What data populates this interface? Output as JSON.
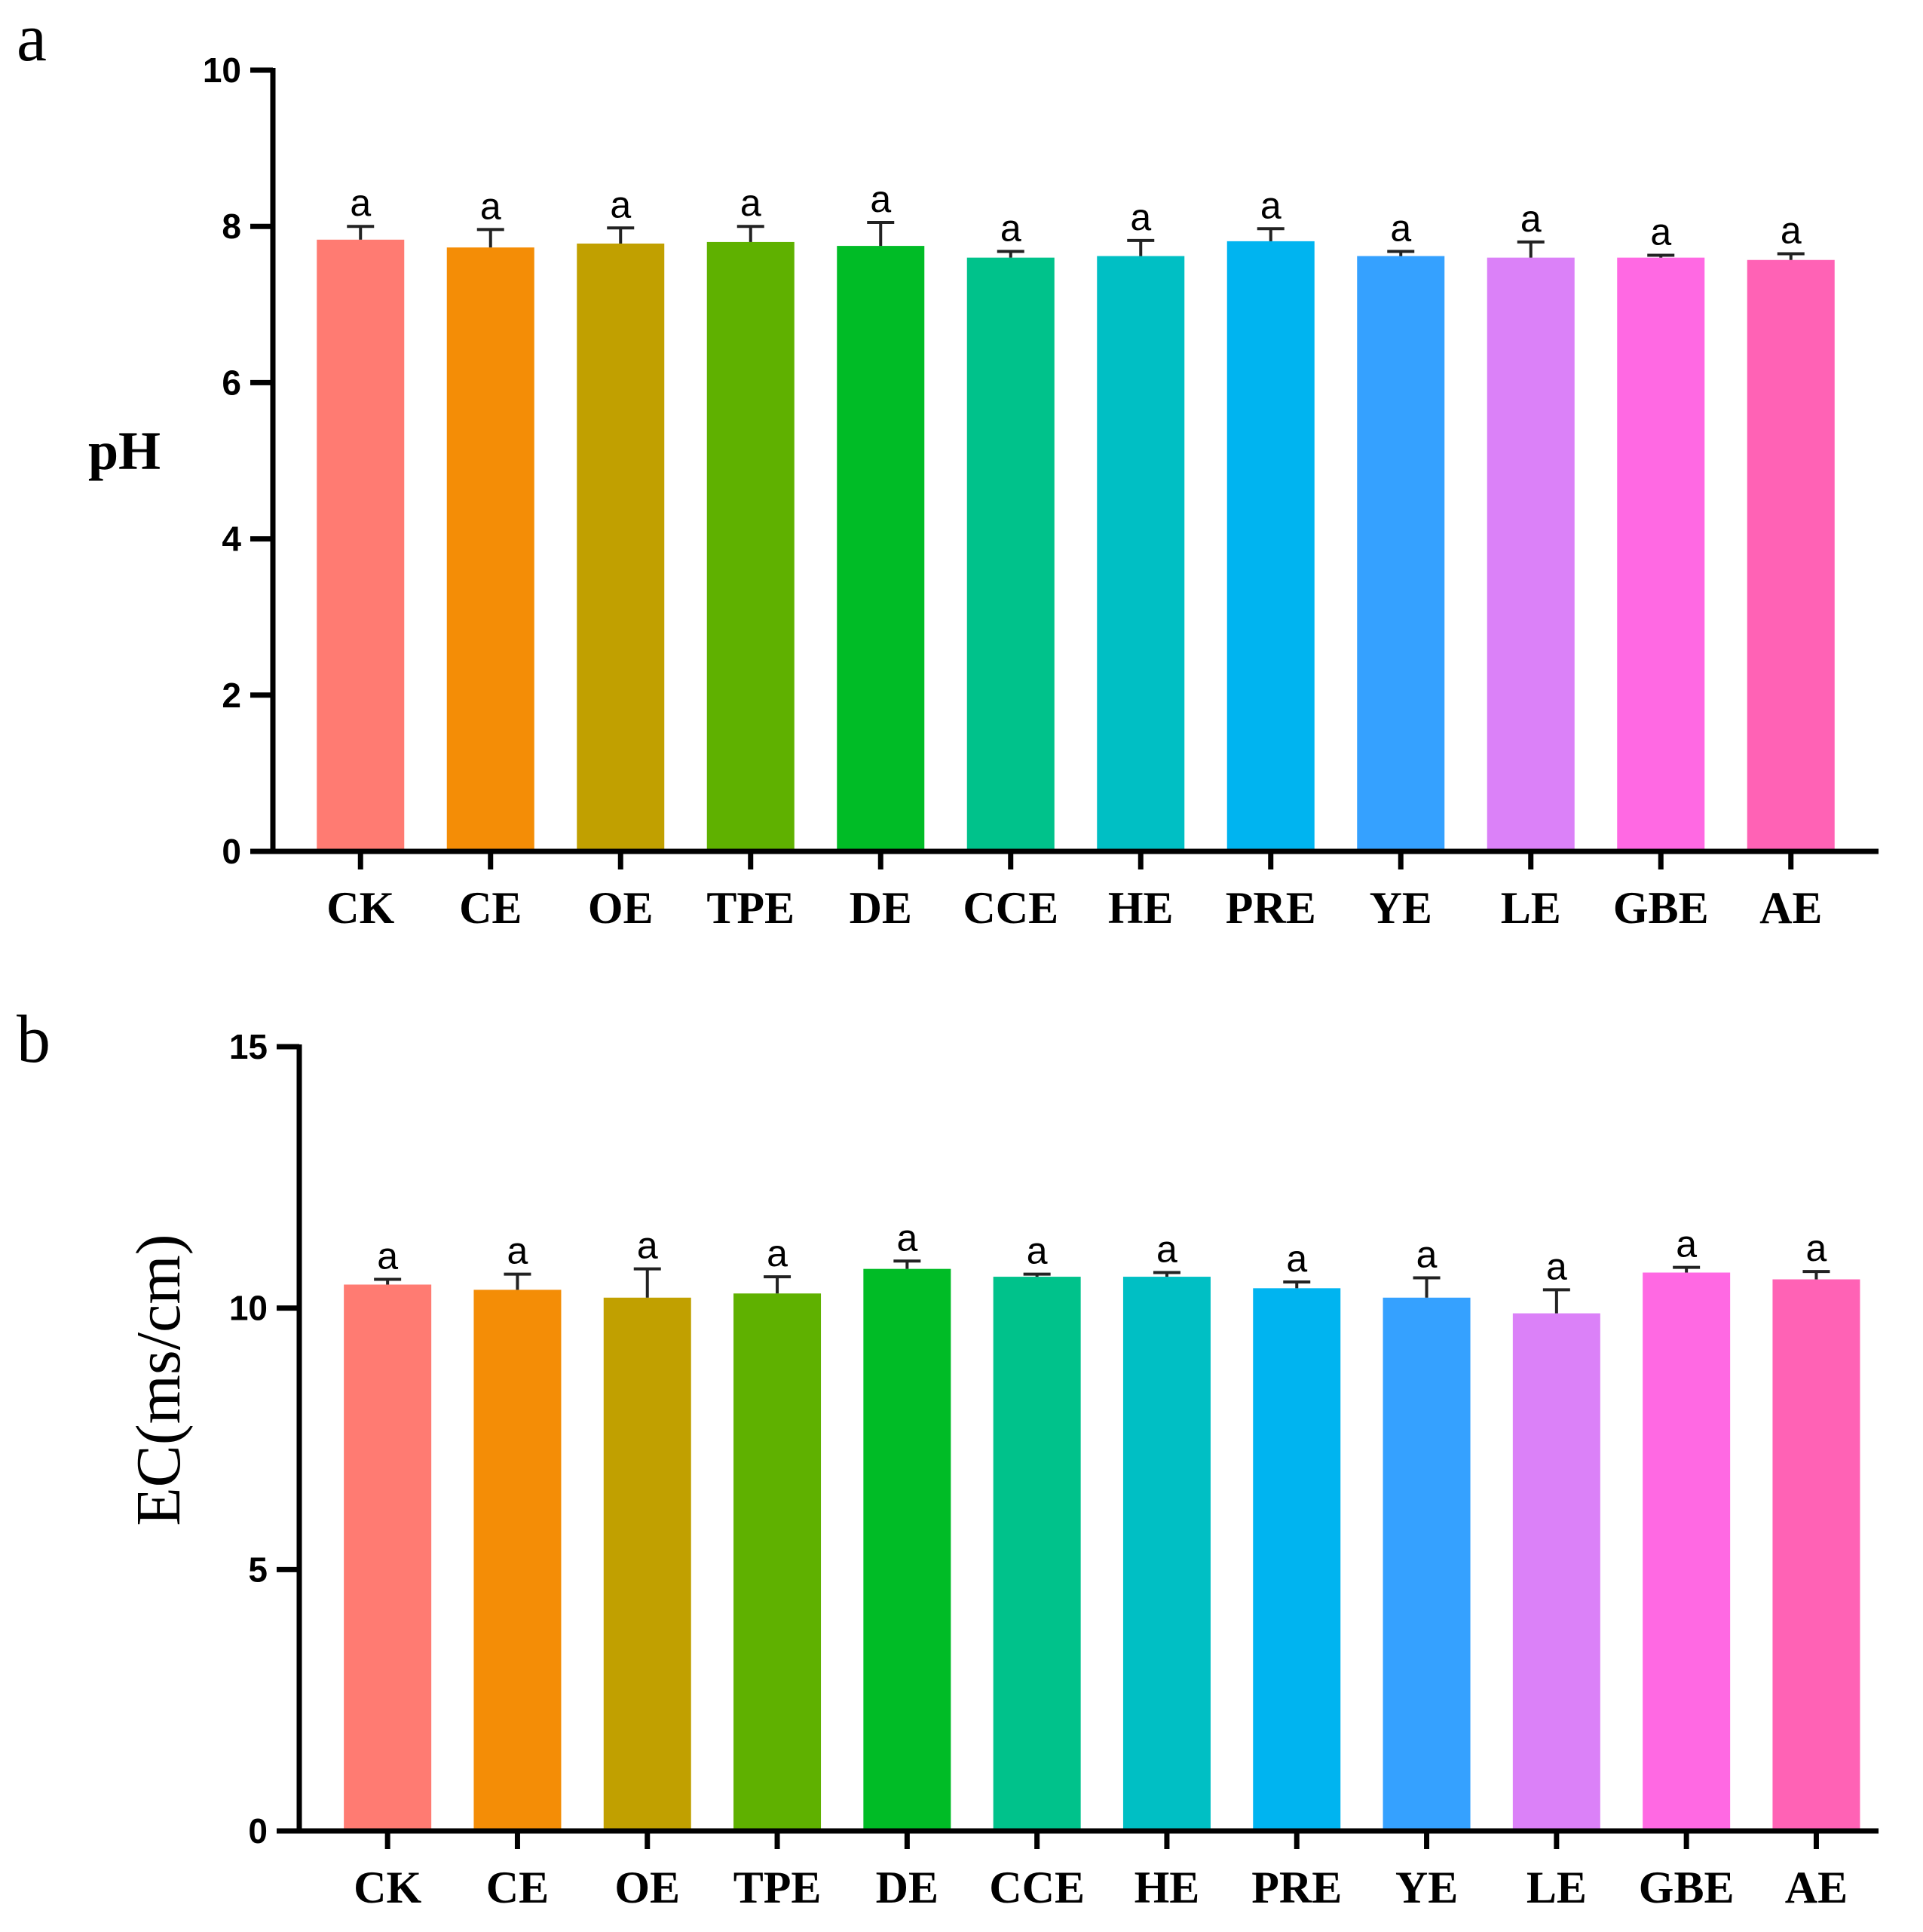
{
  "panels": {
    "a": {
      "label": "a"
    },
    "b": {
      "label": "b"
    }
  },
  "chart_data": [
    {
      "type": "bar",
      "panel": "a",
      "title": "",
      "xlabel": "",
      "ylabel": "pH",
      "ylim": [
        0,
        10
      ],
      "yticks": [
        "0",
        "2",
        "4",
        "6",
        "8",
        "10"
      ],
      "categories": [
        "CK",
        "CE",
        "OE",
        "TPE",
        "DE",
        "CCE",
        "HE",
        "PRE",
        "YE",
        "LE",
        "GBE",
        "AE"
      ],
      "values": [
        7.83,
        7.73,
        7.78,
        7.8,
        7.75,
        7.6,
        7.62,
        7.81,
        7.62,
        7.6,
        7.6,
        7.57
      ],
      "errors": [
        0.17,
        0.23,
        0.2,
        0.2,
        0.3,
        0.08,
        0.2,
        0.16,
        0.06,
        0.2,
        0.03,
        0.08
      ],
      "significance": [
        "a",
        "a",
        "a",
        "a",
        "a",
        "a",
        "a",
        "a",
        "a",
        "a",
        "a",
        "a"
      ],
      "colors": [
        "#FF7B72",
        "#F48D06",
        "#C1A000",
        "#5FB100",
        "#00BC26",
        "#00C28B",
        "#00BFC4",
        "#00B4F0",
        "#35A1FF",
        "#DB81F8",
        "#FF69E3",
        "#FF62B5"
      ],
      "grid": false
    },
    {
      "type": "bar",
      "panel": "b",
      "title": "",
      "xlabel": "",
      "ylabel": "EC(ms/cm)",
      "ylim": [
        0,
        15
      ],
      "yticks": [
        "0",
        "5",
        "10",
        "15"
      ],
      "categories": [
        "CK",
        "CE",
        "OE",
        "TPE",
        "DE",
        "CCE",
        "HE",
        "PRE",
        "YE",
        "LE",
        "GBE",
        "AE"
      ],
      "values": [
        10.45,
        10.35,
        10.2,
        10.28,
        10.75,
        10.6,
        10.6,
        10.38,
        10.2,
        9.9,
        10.68,
        10.55
      ],
      "errors": [
        0.1,
        0.3,
        0.55,
        0.32,
        0.15,
        0.05,
        0.08,
        0.12,
        0.38,
        0.45,
        0.1,
        0.15
      ],
      "significance": [
        "a",
        "a",
        "a",
        "a",
        "a",
        "a",
        "a",
        "a",
        "a",
        "a",
        "a",
        "a"
      ],
      "colors": [
        "#FF7B72",
        "#F48D06",
        "#C1A000",
        "#5FB100",
        "#00BC26",
        "#00C28B",
        "#00BFC4",
        "#00B4F0",
        "#35A1FF",
        "#DB81F8",
        "#FF69E3",
        "#FF62B5"
      ],
      "grid": false
    }
  ]
}
